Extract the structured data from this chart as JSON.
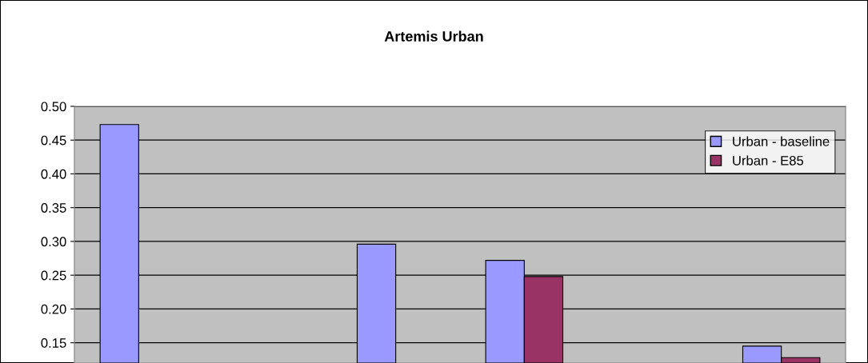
{
  "chart_data": {
    "type": "bar",
    "title": "Artemis Urban",
    "categories": [
      null,
      null,
      null,
      null,
      null,
      null
    ],
    "series": [
      {
        "name": "Urban - baseline",
        "color": "#9999ff",
        "values": [
          0.473,
          null,
          0.296,
          0.272,
          null,
          0.145
        ]
      },
      {
        "name": "Urban - E85",
        "color": "#993366",
        "values": [
          null,
          null,
          null,
          0.248,
          null,
          0.128
        ]
      }
    ],
    "ylim": [
      0.12,
      0.5
    ],
    "yticks": [
      {
        "value": 0.15,
        "label": "0.15"
      },
      {
        "value": 0.2,
        "label": "0.20"
      },
      {
        "value": 0.25,
        "label": "0.25"
      },
      {
        "value": 0.3,
        "label": "0.30"
      },
      {
        "value": 0.35,
        "label": "0.35"
      },
      {
        "value": 0.4,
        "label": "0.40"
      },
      {
        "value": 0.45,
        "label": "0.45"
      },
      {
        "value": 0.5,
        "label": "0.50"
      }
    ],
    "grid": "y",
    "legend": "top right",
    "tick_labels": "y"
  }
}
